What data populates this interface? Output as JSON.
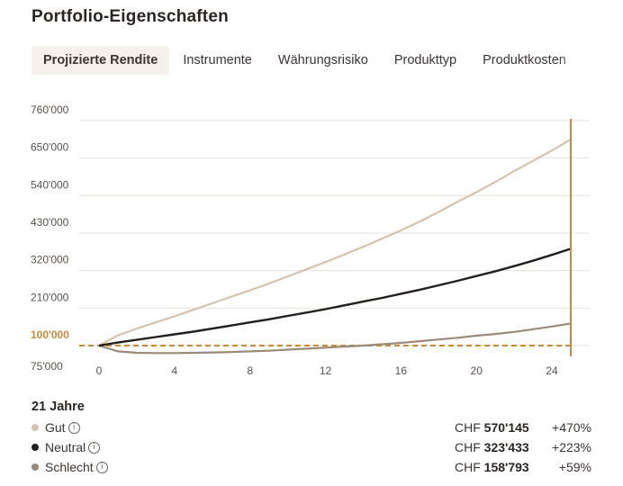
{
  "title": "Portfolio-Eigenschaften",
  "tabs": [
    {
      "label": "Projizierte Rendite",
      "active": true
    },
    {
      "label": "Instrumente",
      "active": false
    },
    {
      "label": "Währungsrisiko",
      "active": false
    },
    {
      "label": "Produkttyp",
      "active": false
    },
    {
      "label": "Produktkosten",
      "active": false
    }
  ],
  "colors": {
    "good": "#d6c2ad",
    "neutral": "#231e1c",
    "bad": "#9a8a7a",
    "accent": "#c8893a"
  },
  "chart_data": {
    "type": "line",
    "x_ticks": [
      0,
      4,
      8,
      12,
      16,
      20,
      24
    ],
    "y_ticks": [
      "760'000",
      "650'000",
      "540'000",
      "430'000",
      "320'000",
      "210'000",
      "100'000",
      "75'000"
    ],
    "y_tick_values": [
      760000,
      650000,
      540000,
      430000,
      320000,
      210000,
      100000,
      75000
    ],
    "highlight_tick": "100'000",
    "xlim": [
      0,
      25
    ],
    "ylim": [
      70000,
      760000
    ],
    "baseline": 100000,
    "marker_x": 25,
    "series": [
      {
        "key": "good",
        "x": [
          0,
          1,
          2,
          3,
          4,
          5,
          6,
          7,
          8,
          9,
          10,
          11,
          12,
          13,
          14,
          15,
          16,
          17,
          18,
          19,
          20,
          21,
          22,
          23,
          24,
          25
        ],
        "values": [
          100000,
          130000,
          150000,
          168000,
          186000,
          205000,
          224000,
          243000,
          262000,
          282000,
          303000,
          324000,
          345000,
          367000,
          390000,
          414000,
          438000,
          464000,
          492000,
          522000,
          550000,
          580000,
          612000,
          642000,
          672000,
          705000
        ]
      },
      {
        "key": "neutral",
        "x": [
          0,
          1,
          2,
          3,
          4,
          5,
          6,
          7,
          8,
          9,
          10,
          11,
          12,
          13,
          14,
          15,
          16,
          17,
          18,
          19,
          20,
          21,
          22,
          23,
          24,
          25
        ],
        "values": [
          100000,
          109000,
          117000,
          125000,
          133000,
          141000,
          150000,
          159000,
          168000,
          177000,
          187000,
          197000,
          207000,
          218000,
          229000,
          240000,
          252000,
          264000,
          277000,
          290000,
          304000,
          318000,
          333000,
          349000,
          366000,
          384000
        ]
      },
      {
        "key": "bad",
        "x": [
          0,
          1,
          2,
          3,
          4,
          5,
          6,
          7,
          8,
          9,
          10,
          11,
          12,
          13,
          14,
          15,
          16,
          17,
          18,
          19,
          20,
          21,
          22,
          23,
          24,
          25
        ],
        "values": [
          100000,
          83000,
          79000,
          78000,
          78000,
          79000,
          80000,
          81000,
          83000,
          85000,
          88000,
          91000,
          94000,
          97000,
          100000,
          104000,
          108000,
          113000,
          118000,
          123000,
          129000,
          134000,
          140000,
          148000,
          156000,
          165000
        ]
      }
    ]
  },
  "summary": {
    "years_label": "21 Jahre",
    "rows": [
      {
        "label": "Gut",
        "currency": "CHF",
        "amount": "570'145",
        "pct": "+470%",
        "color": "#d6c2ad"
      },
      {
        "label": "Neutral",
        "currency": "CHF",
        "amount": "323'433",
        "pct": "+223%",
        "color": "#231e1c"
      },
      {
        "label": "Schlecht",
        "currency": "CHF",
        "amount": "158'793",
        "pct": "+59%",
        "color": "#9a8a7a"
      }
    ]
  }
}
